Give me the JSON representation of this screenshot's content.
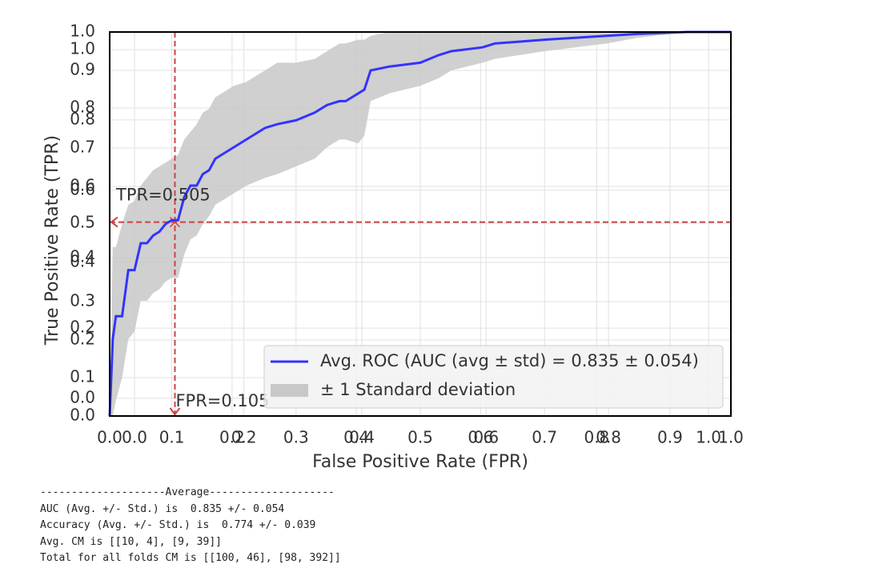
{
  "chart_data": {
    "type": "roc",
    "xlabel": "False Positive Rate (FPR)",
    "ylabel": "True Positive Rate (TPR)",
    "xlim": [
      0,
      1
    ],
    "ylim": [
      0,
      1
    ],
    "xticks": [
      {
        "value": 0,
        "label": "0.0"
      },
      {
        "value": 0.04,
        "label": "0.0"
      },
      {
        "value": 0.1,
        "label": "0.1"
      },
      {
        "value": 0.197,
        "label": "0.2"
      },
      {
        "value": 0.216,
        "label": "0.2"
      },
      {
        "value": 0.3,
        "label": "0.3"
      },
      {
        "value": 0.397,
        "label": "0.4"
      },
      {
        "value": 0.406,
        "label": "0.4"
      },
      {
        "value": 0.5,
        "label": "0.5"
      },
      {
        "value": 0.597,
        "label": "0.6"
      },
      {
        "value": 0.606,
        "label": "0.6"
      },
      {
        "value": 0.7,
        "label": "0.7"
      },
      {
        "value": 0.784,
        "label": "0.8"
      },
      {
        "value": 0.803,
        "label": "0.8"
      },
      {
        "value": 0.902,
        "label": "0.9"
      },
      {
        "value": 0.964,
        "label": "1.0"
      },
      {
        "value": 1,
        "label": "1.0"
      }
    ],
    "yticks": [
      {
        "value": 0,
        "label": "0.0"
      },
      {
        "value": 0.046,
        "label": "0.0"
      },
      {
        "value": 0.1,
        "label": "0.1"
      },
      {
        "value": 0.198,
        "label": "0.2"
      },
      {
        "value": 0.229,
        "label": "0.2"
      },
      {
        "value": 0.298,
        "label": "0.3"
      },
      {
        "value": 0.4,
        "label": "0.4"
      },
      {
        "value": 0.4125,
        "label": "0.4"
      },
      {
        "value": 0.502,
        "label": "0.5"
      },
      {
        "value": 0.588,
        "label": "0.6"
      },
      {
        "value": 0.598,
        "label": "0.6"
      },
      {
        "value": 0.698,
        "label": "0.7"
      },
      {
        "value": 0.771,
        "label": "0.8"
      },
      {
        "value": 0.802,
        "label": "0.8"
      },
      {
        "value": 0.9,
        "label": "0.9"
      },
      {
        "value": 0.954,
        "label": "1.0"
      },
      {
        "value": 1,
        "label": "1.0"
      }
    ],
    "grid": true,
    "legend": "lower right",
    "x": [
      0,
      0.005,
      0.01,
      0.02,
      0.03,
      0.04,
      0.05,
      0.06,
      0.07,
      0.08,
      0.09,
      0.1,
      0.11,
      0.12,
      0.13,
      0.14,
      0.15,
      0.16,
      0.17,
      0.2,
      0.22,
      0.25,
      0.27,
      0.3,
      0.33,
      0.35,
      0.37,
      0.38,
      0.4,
      0.41,
      0.42,
      0.45,
      0.5,
      0.53,
      0.55,
      0.6,
      0.62,
      0.7,
      0.8,
      0.85,
      0.93,
      1.0
    ],
    "series": [
      {
        "name": "Avg. ROC (AUC (avg ± std) = 0.835 ± 0.054)",
        "color": "#3333ff",
        "values": [
          0,
          0.2,
          0.26,
          0.26,
          0.38,
          0.38,
          0.45,
          0.45,
          0.47,
          0.48,
          0.5,
          0.51,
          0.51,
          0.57,
          0.6,
          0.6,
          0.63,
          0.64,
          0.67,
          0.7,
          0.72,
          0.75,
          0.76,
          0.77,
          0.79,
          0.81,
          0.82,
          0.82,
          0.84,
          0.85,
          0.9,
          0.91,
          0.92,
          0.94,
          0.95,
          0.96,
          0.97,
          0.98,
          0.99,
          0.995,
          1.0,
          1.0
        ]
      },
      {
        "name": "± 1 Standard deviation",
        "color": "#c8c8c8",
        "upper": [
          0,
          0.44,
          0.44,
          0.5,
          0.55,
          0.56,
          0.6,
          0.62,
          0.64,
          0.65,
          0.66,
          0.67,
          0.68,
          0.72,
          0.74,
          0.76,
          0.79,
          0.8,
          0.83,
          0.86,
          0.87,
          0.9,
          0.92,
          0.92,
          0.93,
          0.95,
          0.97,
          0.97,
          0.98,
          0.98,
          0.99,
          1.0,
          1.0,
          1.0,
          1.0,
          1.0,
          1.0,
          1.0,
          1.0,
          1.0,
          1.0,
          1.0
        ],
        "lower": [
          0,
          0,
          0.04,
          0.1,
          0.2,
          0.22,
          0.3,
          0.3,
          0.32,
          0.33,
          0.35,
          0.36,
          0.36,
          0.42,
          0.46,
          0.47,
          0.5,
          0.52,
          0.55,
          0.58,
          0.6,
          0.62,
          0.63,
          0.65,
          0.67,
          0.7,
          0.72,
          0.72,
          0.71,
          0.73,
          0.82,
          0.84,
          0.86,
          0.88,
          0.9,
          0.92,
          0.93,
          0.95,
          0.97,
          0.985,
          1.0,
          1.0
        ]
      }
    ],
    "operating_point": {
      "fpr": 0.105,
      "tpr": 0.505,
      "fpr_label": "FPR=0.105",
      "tpr_label": "TPR=0.505",
      "color": "#cc4444"
    }
  },
  "console_output": [
    "--------------------Average--------------------",
    "AUC (Avg. +/- Std.) is  0.835 +/- 0.054",
    "Accuracy (Avg. +/- Std.) is  0.774 +/- 0.039",
    "Avg. CM is [[10, 4], [9, 39]]",
    "Total for all folds CM is [[100, 46], [98, 392]]"
  ]
}
